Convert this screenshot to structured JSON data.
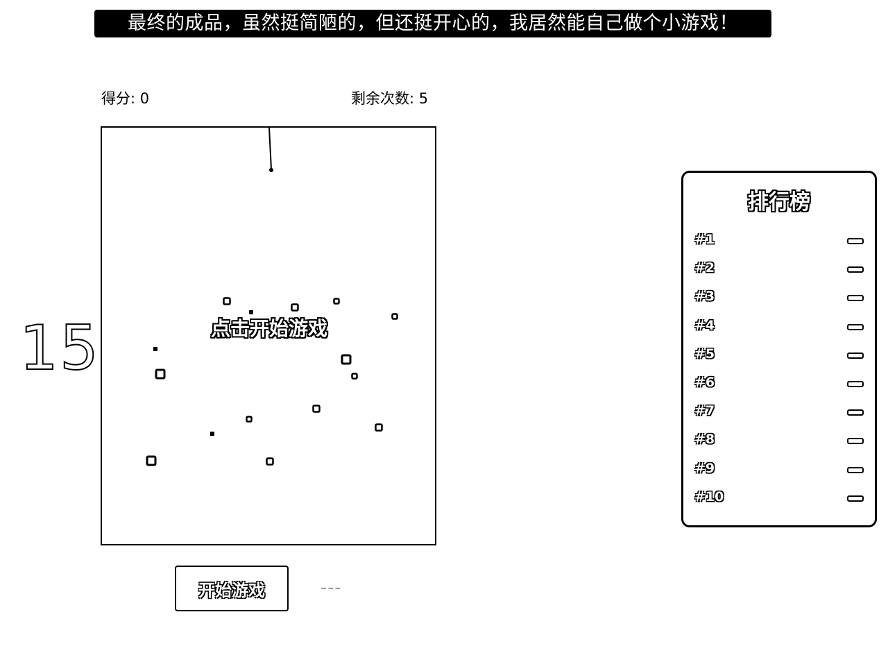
{
  "caption": "最终的成品，虽然挺简陋的，但还挺开心的，我居然能自己做个小游戏！",
  "hud": {
    "score_text": "得分: 0",
    "remaining_text": "剩余次数: 5"
  },
  "side_number": "15",
  "game": {
    "overlay_text": "点击开始游戏",
    "hook_icon": "needle-hook-icon",
    "items": [
      {
        "kind": "ring",
        "size": "small"
      },
      {
        "kind": "dot",
        "size": "small"
      },
      {
        "kind": "ring",
        "size": "small"
      },
      {
        "kind": "ring",
        "size": "tiny"
      },
      {
        "kind": "ring",
        "size": "tiny"
      },
      {
        "kind": "dot",
        "size": "small"
      },
      {
        "kind": "ring",
        "size": "medium"
      },
      {
        "kind": "ring",
        "size": "medium"
      },
      {
        "kind": "ring",
        "size": "tiny"
      },
      {
        "kind": "ring",
        "size": "small"
      },
      {
        "kind": "ring",
        "size": "tiny"
      },
      {
        "kind": "ring",
        "size": "small"
      },
      {
        "kind": "dot",
        "size": "small"
      },
      {
        "kind": "ring",
        "size": "medium"
      },
      {
        "kind": "ring",
        "size": "small"
      }
    ]
  },
  "start_button_label": "开始游戏",
  "tiny_label": "~~~",
  "leaderboard": {
    "title": "排行榜",
    "entries": [
      {
        "rank": "#1"
      },
      {
        "rank": "#2"
      },
      {
        "rank": "#3"
      },
      {
        "rank": "#4"
      },
      {
        "rank": "#5"
      },
      {
        "rank": "#6"
      },
      {
        "rank": "#7"
      },
      {
        "rank": "#8"
      },
      {
        "rank": "#9"
      },
      {
        "rank": "#10"
      }
    ]
  }
}
